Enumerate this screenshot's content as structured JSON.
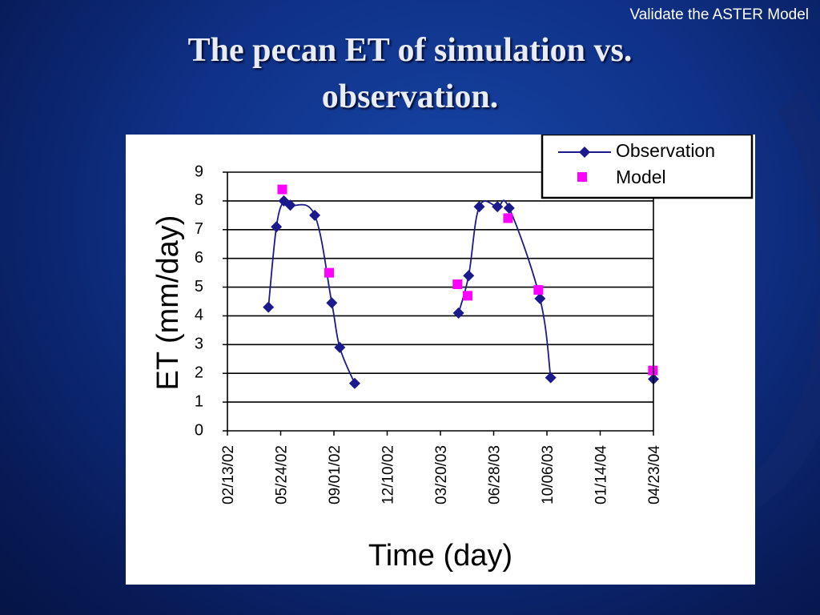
{
  "header": {
    "note": "Validate the ASTER Model"
  },
  "slide": {
    "title_line1": "The pecan ET of simulation vs.",
    "title_line2": "observation."
  },
  "colors": {
    "observation": "#1a1a8c",
    "model": "#ff00ff",
    "background": "#0f3187"
  },
  "chart_data": {
    "type": "line",
    "xlabel": "Time (day)",
    "ylabel": "ET (mm/day)",
    "ylim": [
      0,
      9
    ],
    "yticks": [
      "0",
      "1",
      "2",
      "3",
      "4",
      "5",
      "6",
      "7",
      "8",
      "9"
    ],
    "xlim": [
      "02/13/02",
      "04/23/04"
    ],
    "xticks": [
      "02/13/02",
      "05/24/02",
      "09/01/02",
      "12/10/02",
      "03/20/03",
      "06/28/03",
      "10/06/03",
      "01/14/04",
      "04/23/04"
    ],
    "grid": true,
    "legend_position": "top-right",
    "series": [
      {
        "name": "Observation",
        "marker": "diamond",
        "line": true,
        "segments": [
          [
            {
              "x": "05/01/02",
              "y": 4.3
            },
            {
              "x": "05/16/02",
              "y": 7.1
            },
            {
              "x": "05/30/02",
              "y": 8.0
            },
            {
              "x": "06/11/02",
              "y": 7.85
            },
            {
              "x": "07/27/02",
              "y": 7.5
            },
            {
              "x": "08/28/02",
              "y": 4.45
            },
            {
              "x": "09/12/02",
              "y": 2.9
            },
            {
              "x": "10/10/02",
              "y": 1.65
            }
          ],
          [
            {
              "x": "04/23/03",
              "y": 4.1
            },
            {
              "x": "05/12/03",
              "y": 5.4
            },
            {
              "x": "06/01/03",
              "y": 7.8
            },
            {
              "x": "07/05/03",
              "y": 7.8
            },
            {
              "x": "07/27/03",
              "y": 7.75
            },
            {
              "x": "09/23/03",
              "y": 4.6
            },
            {
              "x": "10/13/03",
              "y": 1.85
            }
          ],
          [
            {
              "x": "04/23/04",
              "y": 1.8
            }
          ]
        ]
      },
      {
        "name": "Model",
        "marker": "square",
        "line": false,
        "points": [
          {
            "x": "05/27/02",
            "y": 8.4
          },
          {
            "x": "08/23/02",
            "y": 5.5
          },
          {
            "x": "04/21/03",
            "y": 5.1
          },
          {
            "x": "05/10/03",
            "y": 4.7
          },
          {
            "x": "07/25/03",
            "y": 7.4
          },
          {
            "x": "09/20/03",
            "y": 4.9
          },
          {
            "x": "04/22/04",
            "y": 2.1
          }
        ]
      }
    ]
  }
}
